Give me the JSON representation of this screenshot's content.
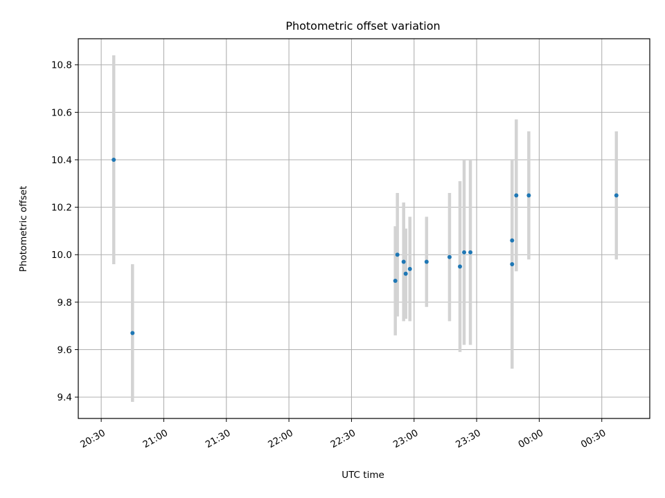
{
  "chart_data": {
    "type": "scatter",
    "title": "Photometric offset variation",
    "xlabel": "UTC time",
    "ylabel": "Photometric offset",
    "x_is_time": true,
    "xlim": [
      "20:19",
      "00:53"
    ],
    "ylim": [
      9.31,
      10.91
    ],
    "grid": true,
    "legend": "none",
    "x_ticks": [
      "20:30",
      "21:00",
      "21:30",
      "22:00",
      "22:30",
      "23:00",
      "23:30",
      "00:00",
      "00:30"
    ],
    "y_ticks": [
      9.4,
      9.6,
      9.8,
      10.0,
      10.2,
      10.4,
      10.6,
      10.8
    ],
    "colors": {
      "points": "#1f77b4",
      "errorbars": "#d3d3d3",
      "grid": "#b0b0b0"
    },
    "points": [
      {
        "x": "20:36",
        "y": 10.4,
        "yerr": 0.44
      },
      {
        "x": "20:45",
        "y": 9.67,
        "yerr": 0.29
      },
      {
        "x": "22:51",
        "y": 9.89,
        "yerr": 0.23
      },
      {
        "x": "22:52",
        "y": 10.0,
        "yerr": 0.26
      },
      {
        "x": "22:55",
        "y": 9.97,
        "yerr": 0.25
      },
      {
        "x": "22:56",
        "y": 9.92,
        "yerr": 0.19
      },
      {
        "x": "22:58",
        "y": 9.94,
        "yerr": 0.22
      },
      {
        "x": "23:06",
        "y": 9.97,
        "yerr": 0.19
      },
      {
        "x": "23:17",
        "y": 9.99,
        "yerr": 0.27
      },
      {
        "x": "23:22",
        "y": 9.95,
        "yerr": 0.36
      },
      {
        "x": "23:24",
        "y": 10.01,
        "yerr": 0.39
      },
      {
        "x": "23:27",
        "y": 10.01,
        "yerr": 0.39
      },
      {
        "x": "23:47",
        "y": 9.96,
        "yerr": 0.44
      },
      {
        "x": "23:47",
        "y": 10.06,
        "yerr": 0.32
      },
      {
        "x": "23:49",
        "y": 10.25,
        "yerr": 0.32
      },
      {
        "x": "23:55",
        "y": 10.25,
        "yerr": 0.27
      },
      {
        "x": "00:37",
        "y": 10.25,
        "yerr": 0.27
      }
    ]
  }
}
